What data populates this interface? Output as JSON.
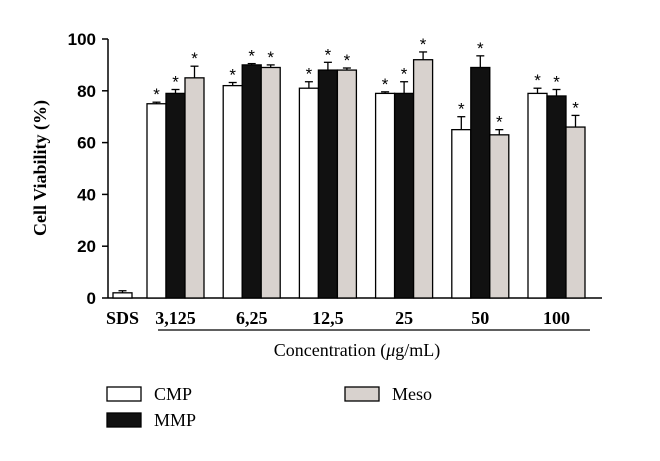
{
  "chart_data": {
    "type": "bar",
    "ylabel": "Cell Viability (%)",
    "xlabel_prefix": "Concentration (",
    "xlabel_unit_mu": "μ",
    "xlabel_suffix": "g/mL)",
    "ylim": [
      0,
      100
    ],
    "yticks": [
      0,
      20,
      40,
      60,
      80,
      100
    ],
    "control": {
      "label": "SDS",
      "value": 2,
      "error": 0.8
    },
    "categories": [
      "3,125",
      "6,25",
      "12,5",
      "25",
      "50",
      "100"
    ],
    "series": [
      {
        "name": "CMP",
        "color": "#ffffff",
        "values": [
          75,
          82,
          81,
          79,
          65,
          79
        ],
        "errors": [
          0.6,
          1.2,
          2.5,
          0.6,
          5,
          2
        ],
        "sig": [
          "*",
          "*",
          "*",
          "*",
          "*",
          "*"
        ]
      },
      {
        "name": "MMP",
        "color": "#111111",
        "values": [
          79,
          90,
          88,
          79,
          89,
          78
        ],
        "errors": [
          1.5,
          0.5,
          3,
          4.5,
          4.5,
          2.5
        ],
        "sig": [
          "*",
          "*",
          "*",
          "*",
          "*",
          "*"
        ]
      },
      {
        "name": "Meso",
        "color": "#d8d2ce",
        "values": [
          85,
          89,
          88,
          92,
          63,
          66
        ],
        "errors": [
          4.5,
          1,
          0.8,
          3,
          2,
          4.5
        ],
        "sig": [
          "*",
          "*",
          "*",
          "*",
          "*",
          "*"
        ]
      }
    ],
    "legend_placement": "bottom"
  }
}
